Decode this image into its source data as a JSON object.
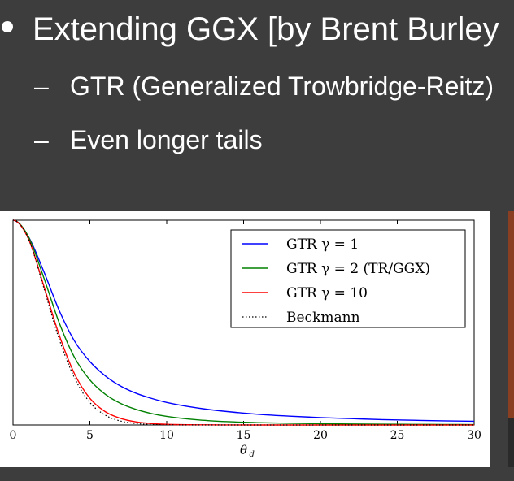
{
  "slide": {
    "bullet_main": "Extending GGX [by Brent Burley",
    "sub_bullets": [
      "GTR (Generalized Trowbridge-Reitz)",
      "Even longer tails"
    ],
    "dash": "–"
  },
  "chart_data": {
    "type": "line",
    "xlabel": "θ",
    "xlabel_sub": "d",
    "xlim": [
      0,
      30
    ],
    "ylim": [
      0,
      1
    ],
    "xticks": [
      "0",
      "5",
      "10",
      "15",
      "20",
      "25",
      "30"
    ],
    "legend_position": "top-right",
    "grid": false,
    "x": [
      0,
      1,
      2,
      3,
      4,
      5,
      6,
      7,
      8,
      9,
      10,
      12,
      14,
      16,
      18,
      20,
      22,
      24,
      26,
      28,
      30
    ],
    "series": [
      {
        "name": "GTR γ = 1",
        "color": "#0000ff",
        "values": [
          1.0,
          0.92,
          0.75,
          0.56,
          0.41,
          0.31,
          0.24,
          0.19,
          0.155,
          0.13,
          0.11,
          0.083,
          0.065,
          0.052,
          0.043,
          0.036,
          0.031,
          0.026,
          0.023,
          0.02,
          0.018
        ]
      },
      {
        "name": "GTR γ = 2 (TR/GGX)",
        "color": "#008000",
        "values": [
          1.0,
          0.92,
          0.72,
          0.5,
          0.33,
          0.22,
          0.15,
          0.105,
          0.076,
          0.056,
          0.042,
          0.025,
          0.016,
          0.011,
          0.008,
          0.006,
          0.0045,
          0.0035,
          0.0028,
          0.0022,
          0.0018
        ]
      },
      {
        "name": "GTR γ = 10",
        "color": "#ff0000",
        "values": [
          1.0,
          0.91,
          0.68,
          0.44,
          0.25,
          0.13,
          0.065,
          0.032,
          0.015,
          0.007,
          0.003,
          0.0008,
          0.0002,
          0.0,
          0.0,
          0.0,
          0.0,
          0.0,
          0.0,
          0.0,
          0.0
        ]
      },
      {
        "name": "Beckmann",
        "color": "#000000",
        "dashed": true,
        "values": [
          1.0,
          0.91,
          0.67,
          0.42,
          0.23,
          0.11,
          0.048,
          0.019,
          0.007,
          0.0023,
          0.0007,
          0.0,
          0.0,
          0.0,
          0.0,
          0.0,
          0.0,
          0.0,
          0.0,
          0.0,
          0.0
        ]
      }
    ]
  }
}
